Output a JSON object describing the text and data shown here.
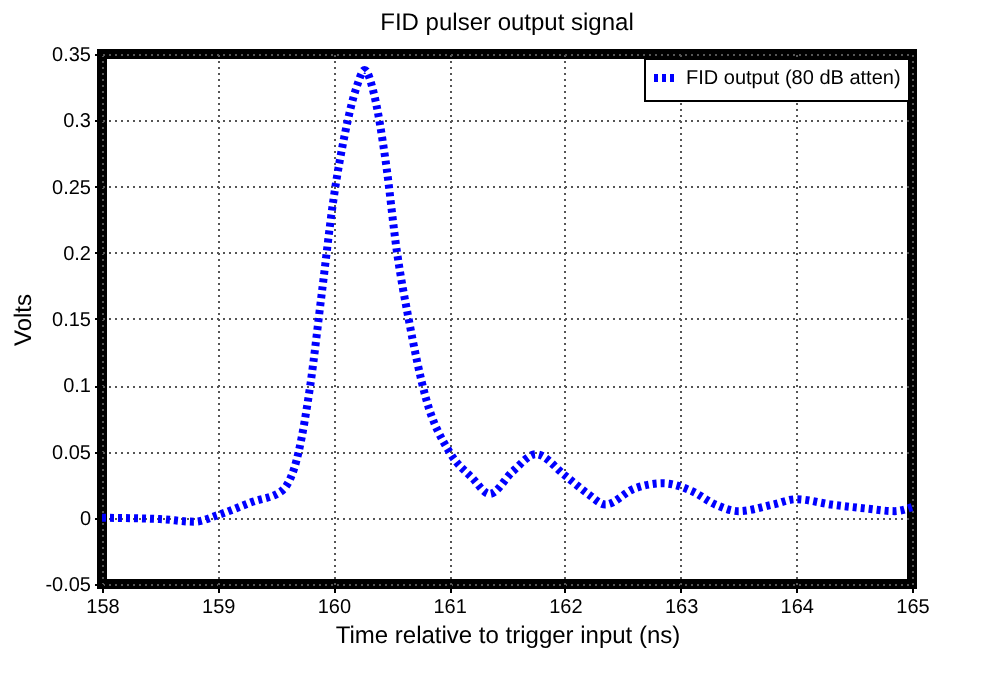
{
  "chart_data": {
    "type": "line",
    "title": "FID pulser output signal",
    "xlabel": "Time relative to trigger input (ns)",
    "ylabel": "Volts",
    "xlim": [
      158,
      165
    ],
    "xticks": [
      158,
      159,
      160,
      161,
      162,
      163,
      164,
      165
    ],
    "ylim": [
      -0.05,
      0.35
    ],
    "yticks": [
      -0.05,
      0,
      0.05,
      0.1,
      0.15,
      0.2,
      0.25,
      0.3,
      0.35
    ],
    "grid": true,
    "legend": "top right",
    "line_style": "dotted",
    "marker": "none",
    "series": [
      {
        "name": "FID output (80 dB atten)",
        "color": "#0000ff",
        "x": [
          158,
          158.5,
          158.8,
          159,
          159.3,
          159.55,
          159.7,
          159.8,
          159.9,
          160.0,
          160.1,
          160.2,
          160.27,
          160.35,
          160.45,
          160.55,
          160.65,
          160.8,
          161.0,
          161.2,
          161.35,
          161.55,
          161.75,
          162.0,
          162.2,
          162.35,
          162.6,
          162.85,
          163.1,
          163.3,
          163.5,
          163.8,
          164.0,
          164.3,
          164.6,
          164.85,
          165
        ],
        "values": [
          0,
          -0.001,
          -0.003,
          0.002,
          0.012,
          0.02,
          0.05,
          0.1,
          0.17,
          0.24,
          0.29,
          0.325,
          0.338,
          0.32,
          0.27,
          0.2,
          0.15,
          0.09,
          0.05,
          0.03,
          0.018,
          0.035,
          0.048,
          0.032,
          0.018,
          0.01,
          0.022,
          0.026,
          0.02,
          0.01,
          0.005,
          0.01,
          0.014,
          0.01,
          0.007,
          0.005,
          0.008
        ]
      }
    ]
  }
}
